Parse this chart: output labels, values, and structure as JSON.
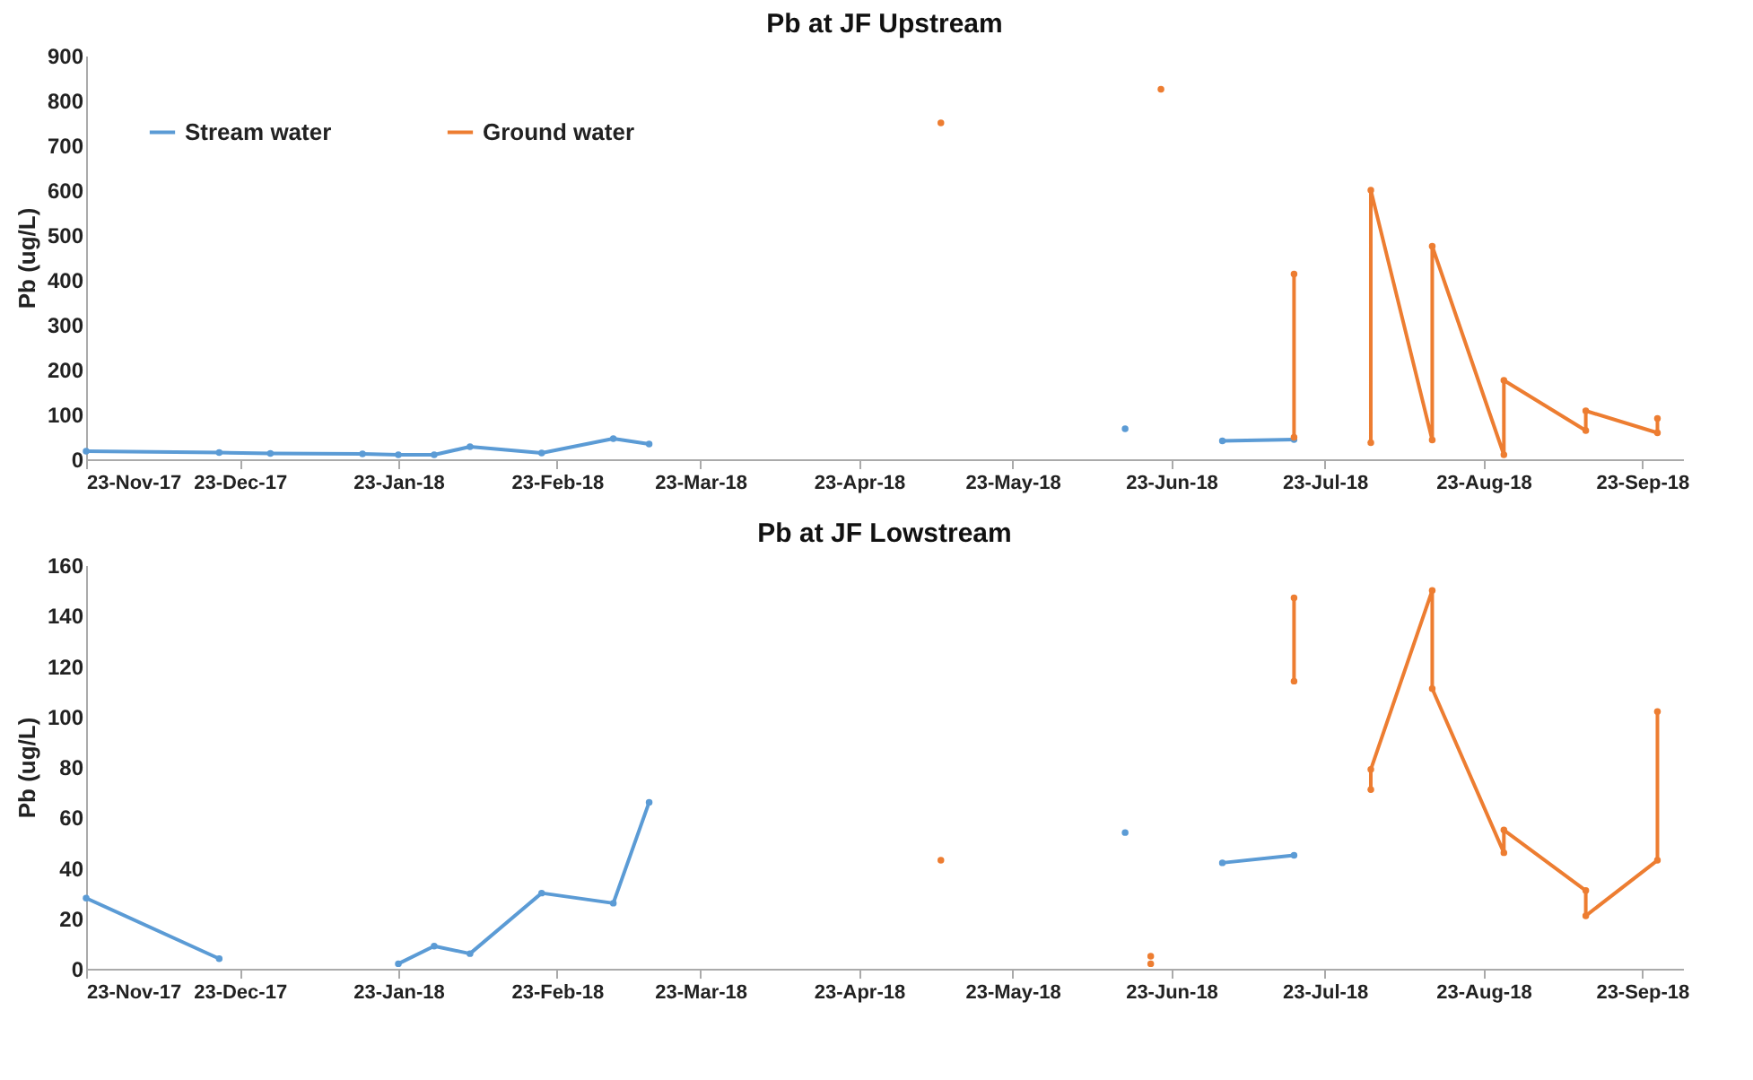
{
  "chart_data": [
    {
      "type": "line",
      "title": "Pb at JF Upstream",
      "ylabel": "Pb (ug/L)",
      "ylim": [
        0,
        900
      ],
      "yticks": [
        0,
        100,
        200,
        300,
        400,
        500,
        600,
        700,
        800,
        900
      ],
      "xlim": [
        "2017-11-23",
        "2018-10-01"
      ],
      "xticks": [
        {
          "value": "2017-11-23",
          "label": "23-Nov-17"
        },
        {
          "value": "2017-12-23",
          "label": "23-Dec-17"
        },
        {
          "value": "2018-01-23",
          "label": "23-Jan-18"
        },
        {
          "value": "2018-02-23",
          "label": "23-Feb-18"
        },
        {
          "value": "2018-03-23",
          "label": "23-Mar-18"
        },
        {
          "value": "2018-04-23",
          "label": "23-Apr-18"
        },
        {
          "value": "2018-05-23",
          "label": "23-May-18"
        },
        {
          "value": "2018-06-23",
          "label": "23-Jun-18"
        },
        {
          "value": "2018-07-23",
          "label": "23-Jul-18"
        },
        {
          "value": "2018-08-23",
          "label": "23-Aug-18"
        },
        {
          "value": "2018-09-23",
          "label": "23-Sep-18"
        }
      ],
      "legend": "top left",
      "marker": "circle",
      "line_style": "solid",
      "grid": false,
      "series": [
        {
          "name": "Stream water",
          "color": "#5b9bd5",
          "x": [
            "2017-11-23",
            "2017-12-19",
            "2017-12-29",
            "2018-01-16",
            "2018-01-23",
            "2018-01-30",
            "2018-02-06",
            "2018-02-20",
            "2018-03-06",
            "2018-03-13",
            null,
            "2018-06-14",
            null,
            "2018-07-03",
            "2018-07-17"
          ],
          "values": [
            18,
            15,
            13,
            12,
            10,
            10,
            28,
            14,
            46,
            34,
            null,
            68,
            null,
            41,
            44
          ]
        },
        {
          "name": "Ground water",
          "color": "#ed7d31",
          "x": [
            "2018-05-09",
            null,
            "2018-06-21",
            null,
            "2018-07-17",
            "2018-07-17",
            null,
            "2018-08-01",
            "2018-08-01",
            "2018-08-13",
            "2018-08-13",
            "2018-08-27",
            "2018-08-27",
            "2018-09-12",
            "2018-09-12",
            "2018-09-26",
            "2018-09-26"
          ],
          "values": [
            750,
            null,
            825,
            null,
            49,
            413,
            null,
            37,
            600,
            43,
            475,
            10,
            176,
            64,
            108,
            59,
            91
          ]
        }
      ]
    },
    {
      "type": "line",
      "title": "Pb at JF Lowstream",
      "ylabel": "Pb (ug/L)",
      "ylim": [
        0,
        160
      ],
      "yticks": [
        0,
        20,
        40,
        60,
        80,
        100,
        120,
        140,
        160
      ],
      "xlim": [
        "2017-11-23",
        "2018-10-01"
      ],
      "xticks": [
        {
          "value": "2017-11-23",
          "label": "23-Nov-17"
        },
        {
          "value": "2017-12-23",
          "label": "23-Dec-17"
        },
        {
          "value": "2018-01-23",
          "label": "23-Jan-18"
        },
        {
          "value": "2018-02-23",
          "label": "23-Feb-18"
        },
        {
          "value": "2018-03-23",
          "label": "23-Mar-18"
        },
        {
          "value": "2018-04-23",
          "label": "23-Apr-18"
        },
        {
          "value": "2018-05-23",
          "label": "23-May-18"
        },
        {
          "value": "2018-06-23",
          "label": "23-Jun-18"
        },
        {
          "value": "2018-07-23",
          "label": "23-Jul-18"
        },
        {
          "value": "2018-08-23",
          "label": "23-Aug-18"
        },
        {
          "value": "2018-09-23",
          "label": "23-Sep-18"
        }
      ],
      "legend": "top left",
      "marker": "circle",
      "line_style": "solid",
      "grid": false,
      "series": [
        {
          "name": "Stream water",
          "color": "#5b9bd5",
          "x": [
            "2017-11-23",
            "2017-12-19",
            null,
            "2018-01-23",
            "2018-01-30",
            "2018-02-06",
            "2018-02-20",
            "2018-03-06",
            "2018-03-13",
            null,
            "2018-06-14",
            null,
            "2018-07-03",
            "2018-07-17"
          ],
          "values": [
            28,
            4,
            null,
            2,
            9,
            6,
            30,
            26,
            66,
            null,
            54,
            null,
            42,
            45
          ]
        },
        {
          "name": "Ground water",
          "color": "#ed7d31",
          "x": [
            "2018-05-09",
            null,
            "2018-06-19",
            null,
            "2018-06-19",
            null,
            "2018-07-17",
            "2018-07-17",
            null,
            "2018-08-01",
            "2018-08-01",
            "2018-08-13",
            "2018-08-13",
            "2018-08-27",
            "2018-08-27",
            "2018-09-12",
            "2018-09-12",
            "2018-09-26",
            "2018-09-26"
          ],
          "values": [
            43,
            null,
            5,
            null,
            2,
            null,
            147,
            114,
            null,
            71,
            79,
            150,
            111,
            46,
            55,
            31,
            21,
            43,
            102
          ]
        }
      ]
    }
  ]
}
